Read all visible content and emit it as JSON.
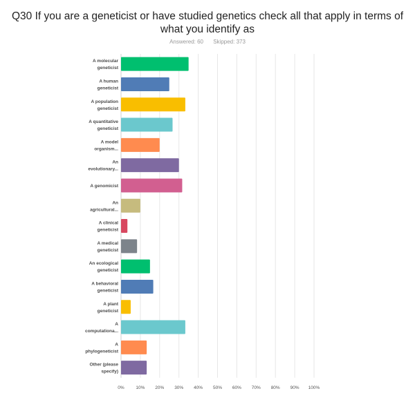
{
  "question": {
    "title": "Q30 If you are a geneticist or have studied genetics check all that apply in terms of what you identify as",
    "answered": "Answered: 60",
    "skipped": "Skipped: 373"
  },
  "chart_data": {
    "type": "bar",
    "orientation": "horizontal",
    "title": "Q30 If you are a geneticist or have studied genetics check all that apply in terms of what you identify as",
    "categories": [
      [
        "A molecular",
        "geneticist"
      ],
      [
        "A human",
        "geneticist"
      ],
      [
        "A population",
        "geneticist"
      ],
      [
        "A quantitative",
        "geneticist"
      ],
      [
        "A model",
        "organism..."
      ],
      [
        "An",
        "evolutionary..."
      ],
      [
        "A genomicist"
      ],
      [
        "An",
        "agricultural..."
      ],
      [
        "A clinical",
        "geneticist"
      ],
      [
        "A medical",
        "geneticist"
      ],
      [
        "An ecological",
        "geneticist"
      ],
      [
        "A behavioral",
        "geneticist"
      ],
      [
        "A plant",
        "geneticist"
      ],
      [
        "A",
        "computationa..."
      ],
      [
        "A",
        "phylogeneticist"
      ],
      [
        "Other (please",
        "specify)"
      ]
    ],
    "values": [
      35,
      25,
      33.3,
      26.7,
      20,
      30,
      31.7,
      10,
      3.3,
      8.3,
      15,
      16.7,
      5,
      33.3,
      13.3,
      13.3
    ],
    "colors": [
      "#00bf6f",
      "#507cb6",
      "#f9be00",
      "#6bc8cd",
      "#ff8b4f",
      "#7f6aa1",
      "#d25f90",
      "#c6bb7e",
      "#d84860",
      "#7d848b",
      "#00bf6f",
      "#507cb6",
      "#f9be00",
      "#6bc8cd",
      "#ff8b4f",
      "#7f6aa1"
    ],
    "xlim": [
      0,
      100
    ],
    "xticks": [
      "0%",
      "10%",
      "20%",
      "30%",
      "40%",
      "50%",
      "60%",
      "70%",
      "80%",
      "90%",
      "100%"
    ],
    "grid": true
  }
}
